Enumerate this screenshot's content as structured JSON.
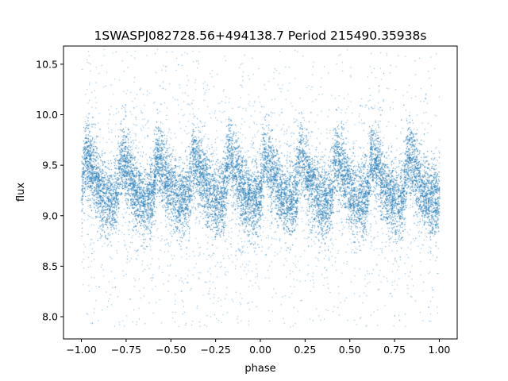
{
  "chart_data": {
    "type": "scatter",
    "title": "1SWASPJ082728.56+494138.7 Period 215490.35938s",
    "xlabel": "phase",
    "ylabel": "flux",
    "xlim": [
      -1.1,
      1.1
    ],
    "ylim": [
      7.78,
      10.68
    ],
    "xticks": [
      {
        "value": -1.0,
        "label": "−1.00"
      },
      {
        "value": -0.75,
        "label": "−0.75"
      },
      {
        "value": -0.5,
        "label": "−0.50"
      },
      {
        "value": -0.25,
        "label": "−0.25"
      },
      {
        "value": 0.0,
        "label": "0.00"
      },
      {
        "value": 0.25,
        "label": "0.25"
      },
      {
        "value": 0.5,
        "label": "0.50"
      },
      {
        "value": 0.75,
        "label": "0.75"
      },
      {
        "value": 1.0,
        "label": "1.00"
      }
    ],
    "yticks": [
      {
        "value": 8.0,
        "label": "8.0"
      },
      {
        "value": 8.5,
        "label": "8.5"
      },
      {
        "value": 9.0,
        "label": "9.0"
      },
      {
        "value": 9.5,
        "label": "9.5"
      },
      {
        "value": 10.0,
        "label": "10.0"
      },
      {
        "value": 10.5,
        "label": "10.5"
      }
    ],
    "grid": false,
    "point_color": "#1f77b4",
    "phase_range": [
      -1.0,
      1.0
    ],
    "cycles_in_range": 10,
    "cycle_profile": [
      {
        "phase_in_cycle": 0.0,
        "flux": 9.25
      },
      {
        "phase_in_cycle": 0.1,
        "flux": 9.6
      },
      {
        "phase_in_cycle": 0.3,
        "flux": 9.45
      },
      {
        "phase_in_cycle": 0.5,
        "flux": 9.25
      },
      {
        "phase_in_cycle": 0.7,
        "flux": 9.15
      },
      {
        "phase_in_cycle": 0.9,
        "flux": 9.15
      },
      {
        "phase_in_cycle": 1.0,
        "flux": 9.25
      }
    ],
    "scatter_spread": 0.18,
    "outlier_flux_range": [
      7.9,
      10.65
    ]
  }
}
